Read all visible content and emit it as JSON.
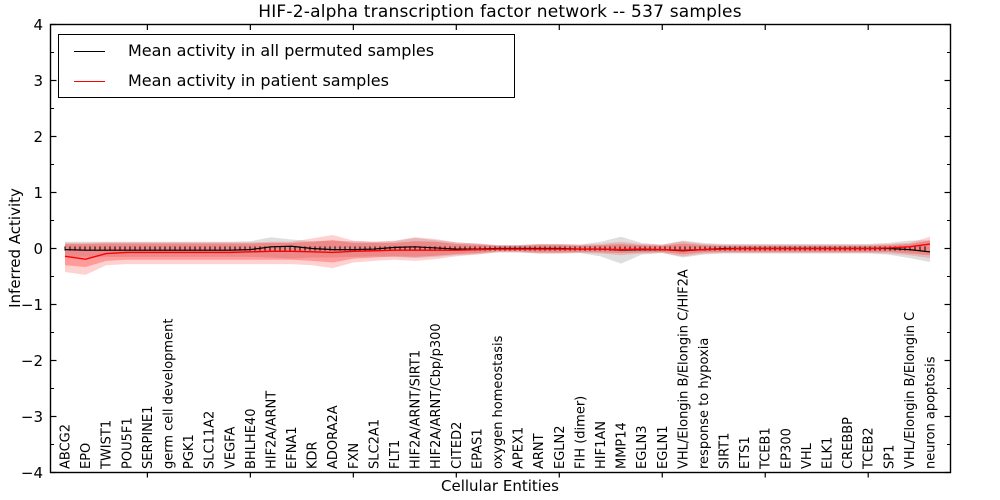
{
  "title": "HIF-2-alpha transcription factor network -- 537 samples",
  "axes": {
    "xlabel": "Cellular Entities",
    "ylabel": "Inferred Activity",
    "ylim": [
      -4,
      4
    ],
    "yticks": [
      "4",
      "3",
      "2",
      "1",
      "0",
      "−1",
      "−2",
      "−3",
      "−4"
    ],
    "ytick_values": [
      4,
      3,
      2,
      1,
      0,
      -1,
      -2,
      -3,
      -4
    ],
    "y_minor_tick_values": [
      -3.5,
      -2.5,
      -1.5,
      -0.5,
      0.5,
      1.5,
      2.5,
      3.5
    ],
    "grid": false
  },
  "legend": {
    "position": "upper left",
    "entries": [
      {
        "label": "Mean activity in all permuted samples",
        "color": "#000000"
      },
      {
        "label": "Mean activity in patient samples",
        "color": "#ff0000"
      }
    ]
  },
  "chart_data": {
    "type": "line",
    "title": "HIF-2-alpha transcription factor network -- 537 samples",
    "xlabel": "Cellular Entities",
    "ylabel": "Inferred Activity",
    "ylim": [
      -4,
      4
    ],
    "x_major_tick_every": 5,
    "zero_line": 0,
    "categories": [
      "ABCG2",
      "EPO",
      "TWIST1",
      "POU5F1",
      "SERPINE1",
      "germ cell development",
      "PGK1",
      "SLC11A2",
      "VEGFA",
      "BHLHE40",
      "HIF2A/ARNT",
      "EFNA1",
      "KDR",
      "ADORA2A",
      "FXN",
      "SLC2A1",
      "FLT1",
      "HIF2A/ARNT/SIRT1",
      "HIF2A/ARNT/Cbp/p300",
      "CITED2",
      "EPAS1",
      "oxygen homeostasis",
      "APEX1",
      "ARNT",
      "EGLN2",
      "FIH (dimer)",
      "HIF1AN",
      "MMP14",
      "EGLN3",
      "EGLN1",
      "VHL/Elongin B/Elongin C/HIF2A",
      "response to hypoxia",
      "SIRT1",
      "ETS1",
      "TCEB1",
      "EP300",
      "VHL",
      "ELK1",
      "CREBBP",
      "TCEB2",
      "SP1",
      "VHL/Elongin B/Elongin C",
      "neuron apoptosis"
    ],
    "series": [
      {
        "name": "Mean activity in all permuted samples",
        "color": "#000000",
        "values": [
          -0.02,
          -0.03,
          -0.03,
          -0.03,
          -0.03,
          -0.03,
          -0.03,
          -0.03,
          -0.03,
          -0.02,
          0.03,
          0.04,
          0.0,
          -0.02,
          -0.02,
          -0.01,
          0.02,
          0.03,
          0.01,
          -0.01,
          -0.01,
          0.0,
          0.0,
          0.0,
          0.0,
          -0.01,
          -0.01,
          -0.03,
          -0.02,
          -0.02,
          -0.04,
          -0.02,
          0.0,
          0.0,
          0.0,
          0.0,
          0.0,
          0.0,
          0.0,
          0.0,
          0.0,
          -0.02,
          -0.06
        ]
      },
      {
        "name": "Mean activity in patient samples",
        "color": "#ff0000",
        "values": [
          -0.14,
          -0.19,
          -0.09,
          -0.07,
          -0.07,
          -0.07,
          -0.07,
          -0.07,
          -0.07,
          -0.06,
          -0.05,
          -0.05,
          -0.06,
          -0.07,
          -0.05,
          -0.04,
          -0.03,
          -0.03,
          -0.03,
          -0.03,
          -0.02,
          -0.01,
          -0.01,
          -0.01,
          -0.01,
          -0.01,
          -0.01,
          -0.02,
          -0.01,
          -0.02,
          -0.03,
          -0.02,
          -0.01,
          0.0,
          0.0,
          0.0,
          0.0,
          0.0,
          0.0,
          0.0,
          0.01,
          0.03,
          0.08
        ]
      }
    ],
    "bands": [
      {
        "name": "permuted-samples-range",
        "color": "rgba(0,0,0,0.13)",
        "upper": [
          0.12,
          0.12,
          0.12,
          0.12,
          0.12,
          0.12,
          0.12,
          0.12,
          0.12,
          0.13,
          0.2,
          0.16,
          0.13,
          0.14,
          0.13,
          0.12,
          0.13,
          0.19,
          0.15,
          0.11,
          0.09,
          0.06,
          0.06,
          0.08,
          0.08,
          0.07,
          0.12,
          0.21,
          0.1,
          0.07,
          0.14,
          0.1,
          0.08,
          0.08,
          0.08,
          0.08,
          0.08,
          0.08,
          0.08,
          0.08,
          0.1,
          0.14,
          0.15
        ],
        "lower": [
          -0.15,
          -0.15,
          -0.15,
          -0.15,
          -0.15,
          -0.15,
          -0.15,
          -0.15,
          -0.15,
          -0.15,
          -0.16,
          -0.18,
          -0.16,
          -0.16,
          -0.15,
          -0.14,
          -0.15,
          -0.17,
          -0.15,
          -0.12,
          -0.1,
          -0.07,
          -0.07,
          -0.09,
          -0.09,
          -0.08,
          -0.14,
          -0.27,
          -0.11,
          -0.08,
          -0.16,
          -0.11,
          -0.09,
          -0.09,
          -0.09,
          -0.09,
          -0.09,
          -0.09,
          -0.09,
          -0.09,
          -0.11,
          -0.17,
          -0.24
        ]
      },
      {
        "name": "patient-samples-outer-range",
        "color": "rgba(255,50,50,0.22)",
        "upper": [
          0.1,
          0.1,
          0.11,
          0.11,
          0.11,
          0.11,
          0.11,
          0.11,
          0.11,
          0.11,
          0.12,
          0.12,
          0.18,
          0.24,
          0.14,
          0.12,
          0.14,
          0.2,
          0.17,
          0.11,
          0.09,
          0.06,
          0.06,
          0.08,
          0.08,
          0.07,
          0.08,
          0.12,
          0.08,
          0.07,
          0.13,
          0.08,
          0.07,
          0.07,
          0.07,
          0.07,
          0.07,
          0.07,
          0.07,
          0.07,
          0.08,
          0.1,
          0.21
        ],
        "lower": [
          -0.42,
          -0.47,
          -0.3,
          -0.28,
          -0.28,
          -0.28,
          -0.28,
          -0.28,
          -0.28,
          -0.28,
          -0.28,
          -0.28,
          -0.3,
          -0.35,
          -0.25,
          -0.22,
          -0.2,
          -0.22,
          -0.19,
          -0.14,
          -0.11,
          -0.07,
          -0.07,
          -0.09,
          -0.09,
          -0.08,
          -0.09,
          -0.12,
          -0.09,
          -0.08,
          -0.14,
          -0.09,
          -0.08,
          -0.08,
          -0.08,
          -0.08,
          -0.08,
          -0.08,
          -0.08,
          -0.08,
          -0.09,
          -0.12,
          -0.17
        ]
      },
      {
        "name": "patient-samples-inner-range",
        "color": "rgba(255,30,30,0.30)",
        "upper": [
          0.08,
          0.08,
          0.09,
          0.09,
          0.09,
          0.09,
          0.09,
          0.09,
          0.09,
          0.09,
          0.1,
          0.1,
          0.12,
          0.15,
          0.1,
          0.1,
          0.1,
          0.13,
          0.12,
          0.08,
          0.07,
          0.05,
          0.05,
          0.06,
          0.06,
          0.05,
          0.06,
          0.08,
          0.06,
          0.05,
          0.09,
          0.06,
          0.05,
          0.05,
          0.05,
          0.05,
          0.05,
          0.05,
          0.05,
          0.05,
          0.06,
          0.08,
          0.14
        ],
        "lower": [
          -0.3,
          -0.33,
          -0.22,
          -0.2,
          -0.2,
          -0.2,
          -0.2,
          -0.2,
          -0.2,
          -0.2,
          -0.2,
          -0.2,
          -0.22,
          -0.25,
          -0.18,
          -0.16,
          -0.14,
          -0.15,
          -0.13,
          -0.1,
          -0.08,
          -0.05,
          -0.05,
          -0.07,
          -0.07,
          -0.06,
          -0.07,
          -0.08,
          -0.07,
          -0.06,
          -0.1,
          -0.07,
          -0.06,
          -0.06,
          -0.06,
          -0.06,
          -0.06,
          -0.06,
          -0.06,
          -0.06,
          -0.06,
          -0.09,
          -0.12
        ]
      }
    ]
  }
}
